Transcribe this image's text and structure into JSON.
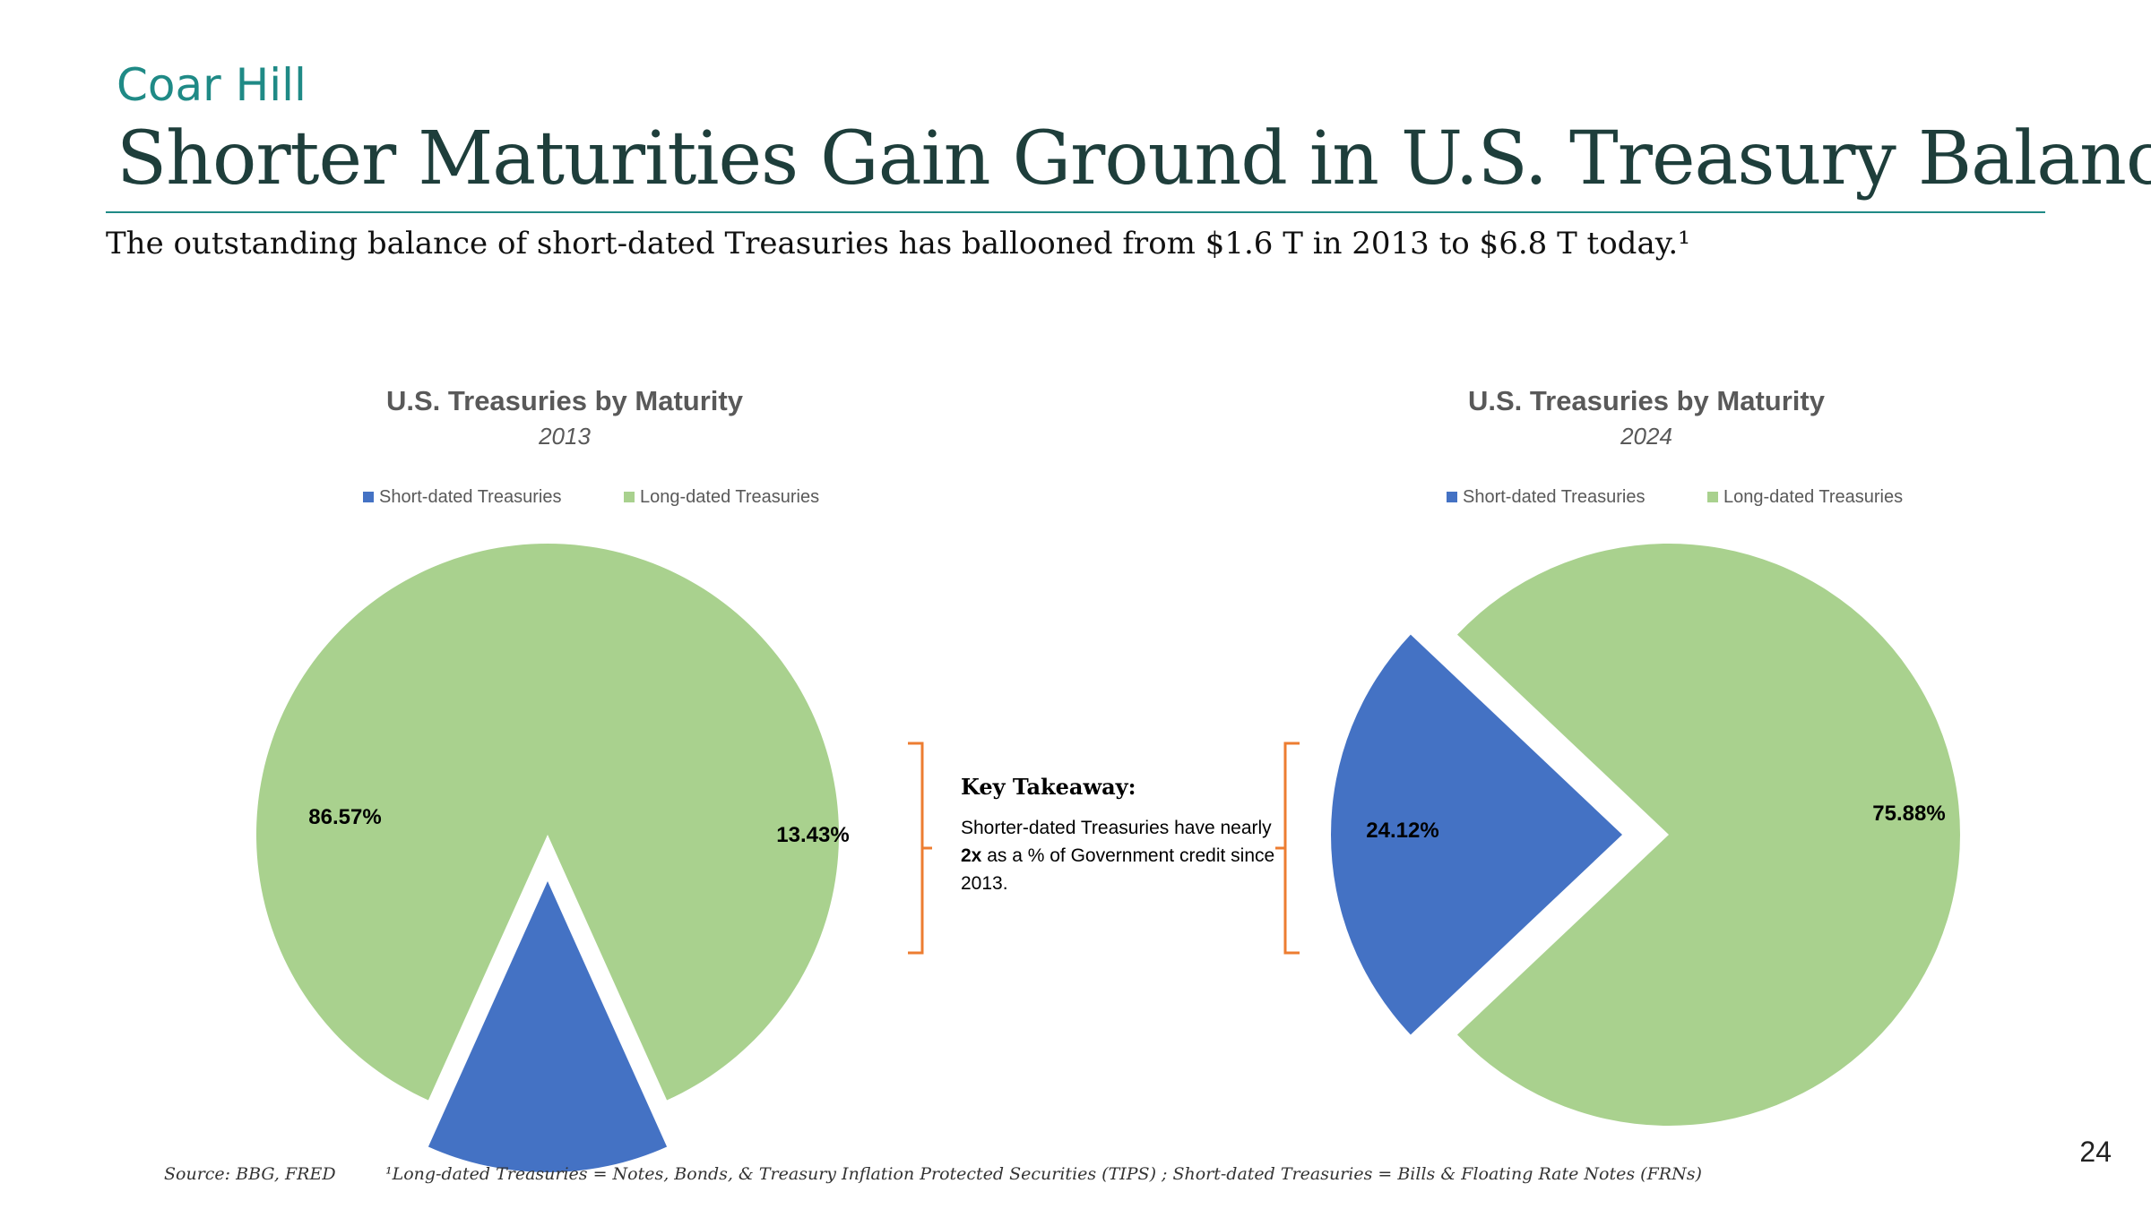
{
  "brand": "Coar Hill",
  "title": "Shorter Maturities Gain Ground in U.S. Treasury Balance",
  "subtitle": "The outstanding balance of short-dated Treasuries has ballooned from $1.6 T in 2013 to $6.8 T today.¹",
  "colors": {
    "short": "#4472c4",
    "long": "#a9d18e",
    "bracket": "#ed7d31",
    "brand": "#1f8a86"
  },
  "chart_data": [
    {
      "type": "pie",
      "title": "U.S. Treasuries by Maturity",
      "subtitle": "2013",
      "legend": [
        "Short-dated Treasuries",
        "Long-dated Treasuries"
      ],
      "legend_position": "top",
      "slices": [
        {
          "name": "Short-dated Treasuries",
          "value": 13.43,
          "label": "13.43%",
          "exploded": true
        },
        {
          "name": "Long-dated Treasuries",
          "value": 86.57,
          "label": "86.57%",
          "exploded": false
        }
      ]
    },
    {
      "type": "pie",
      "title": "U.S. Treasuries by Maturity",
      "subtitle": "2024",
      "legend": [
        "Short-dated Treasuries",
        "Long-dated Treasuries"
      ],
      "legend_position": "top",
      "slices": [
        {
          "name": "Short-dated Treasuries",
          "value": 24.12,
          "label": "24.12%",
          "exploded": true
        },
        {
          "name": "Long-dated Treasuries",
          "value": 75.88,
          "label": "75.88%",
          "exploded": false
        }
      ]
    }
  ],
  "takeaway": {
    "heading": "Key Takeaway:",
    "text_1": "Shorter-dated Treasuries have nearly ",
    "bold": "2x",
    "text_2": " as a % of Government credit since 2013."
  },
  "page_number": "24",
  "source": "Source: BBG, FRED",
  "footnote": "¹Long-dated Treasuries = Notes, Bonds, & Treasury Inflation Protected Securities (TIPS) ; Short-dated Treasuries = Bills & Floating Rate Notes (FRNs)"
}
